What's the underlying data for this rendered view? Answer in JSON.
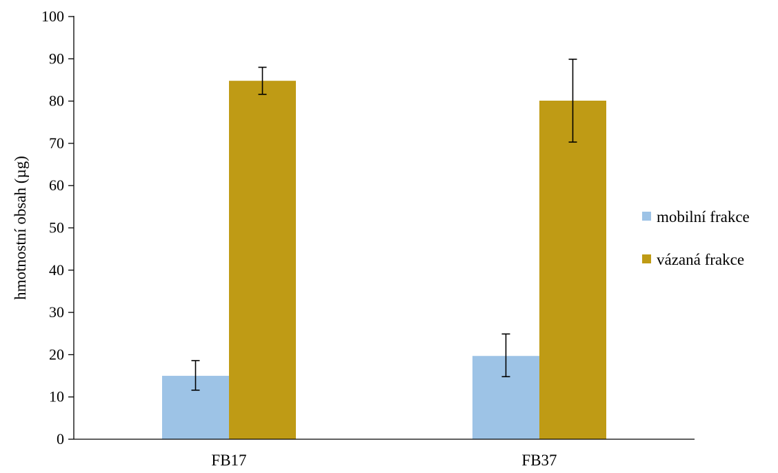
{
  "chart_data": {
    "type": "bar",
    "ylabel": "hmotnostní obsah (µg)",
    "ylim": [
      0,
      100
    ],
    "yticks": [
      "0",
      "10",
      "20",
      "30",
      "40",
      "50",
      "60",
      "70",
      "80",
      "90",
      "100"
    ],
    "categories": [
      "FB17",
      "FB37"
    ],
    "series": [
      {
        "name": "mobilní frakce",
        "color": "#9dc3e6",
        "values": [
          15.0,
          19.7
        ],
        "error_low": [
          11.6,
          14.8
        ],
        "error_high": [
          18.6,
          24.9
        ]
      },
      {
        "name": "vázaná frakce",
        "color": "#bf9b15",
        "values": [
          84.8,
          80.1
        ],
        "error_low": [
          81.6,
          70.3
        ],
        "error_high": [
          88.0,
          89.9
        ]
      }
    ],
    "legend_position": "right",
    "grid": false
  }
}
